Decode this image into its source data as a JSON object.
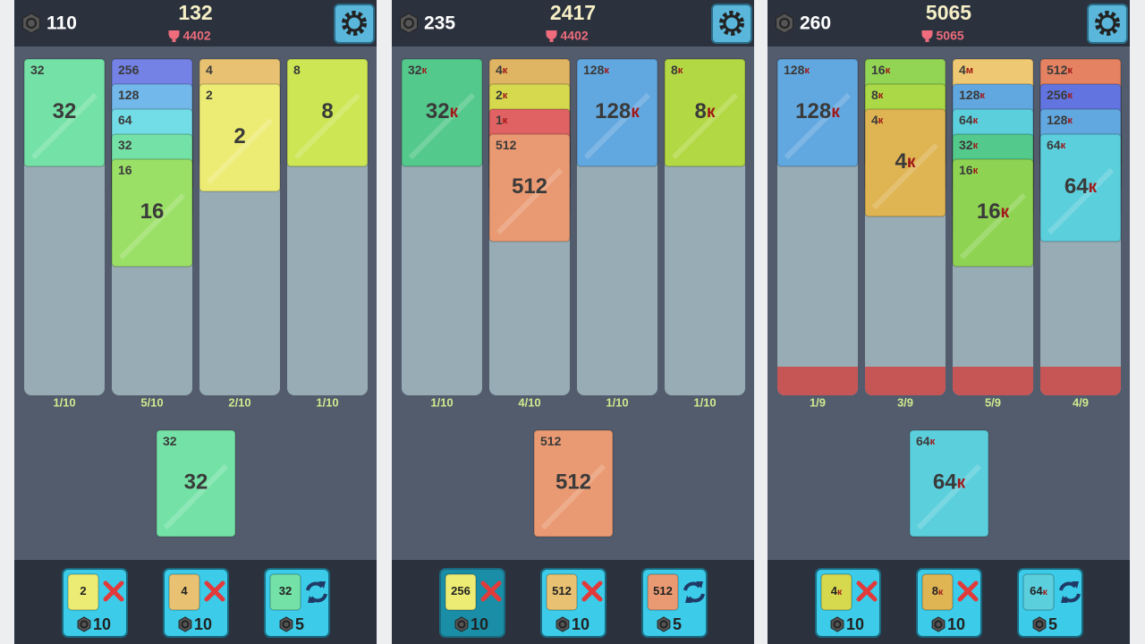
{
  "panels": [
    {
      "coins": "110",
      "score": "132",
      "best": "4402",
      "columns": [
        {
          "cards": [
            {
              "t": "32",
              "color": "#74e2a6"
            }
          ],
          "capacity": "1/10"
        },
        {
          "cards": [
            {
              "t": "256",
              "color": "#7482e6"
            },
            {
              "t": "128",
              "color": "#72b8ea"
            },
            {
              "t": "64",
              "color": "#72dde6"
            },
            {
              "t": "32",
              "color": "#74e2a6"
            },
            {
              "t": "16",
              "color": "#9ae066"
            }
          ],
          "capacity": "5/10"
        },
        {
          "cards": [
            {
              "t": "4",
              "color": "#e8c272"
            },
            {
              "t": "2",
              "color": "#ecec74"
            }
          ],
          "capacity": "2/10"
        },
        {
          "cards": [
            {
              "t": "8",
              "color": "#cce654"
            }
          ],
          "capacity": "1/10"
        }
      ],
      "next": {
        "t": "32",
        "color": "#74e2a6"
      },
      "powerups": [
        {
          "card": {
            "t": "2",
            "color": "#ecec74"
          },
          "action": "remove",
          "cost": "10"
        },
        {
          "card": {
            "t": "4",
            "color": "#e8c272"
          },
          "action": "remove",
          "cost": "10"
        },
        {
          "card": {
            "t": "32",
            "color": "#74e2a6"
          },
          "action": "swap",
          "cost": "5"
        }
      ]
    },
    {
      "coins": "235",
      "score": "2417",
      "best": "4402",
      "columns": [
        {
          "cards": [
            {
              "t": "32",
              "u": "к",
              "color": "#54c98c"
            }
          ],
          "capacity": "1/10"
        },
        {
          "cards": [
            {
              "t": "4",
              "u": "к",
              "color": "#dfb462"
            },
            {
              "t": "2",
              "u": "к",
              "color": "#d6d84e"
            },
            {
              "t": "1",
              "u": "к",
              "color": "#e06262"
            },
            {
              "t": "512",
              "color": "#ea9a72"
            }
          ],
          "capacity": "4/10"
        },
        {
          "cards": [
            {
              "t": "128",
              "u": "к",
              "color": "#62a8e0"
            }
          ],
          "capacity": "1/10"
        },
        {
          "cards": [
            {
              "t": "8",
              "u": "к",
              "color": "#b2d844"
            }
          ],
          "capacity": "1/10"
        }
      ],
      "next": {
        "t": "512",
        "color": "#ea9a72"
      },
      "powerups": [
        {
          "card": {
            "t": "256",
            "color": "#ecec74"
          },
          "action": "remove",
          "cost": "10",
          "selected": true
        },
        {
          "card": {
            "t": "512",
            "color": "#e8c272"
          },
          "action": "remove",
          "cost": "10"
        },
        {
          "card": {
            "t": "512",
            "color": "#ea9a72"
          },
          "action": "swap",
          "cost": "5"
        }
      ]
    },
    {
      "coins": "260",
      "score": "5065",
      "best": "5065",
      "locked_slot": true,
      "columns": [
        {
          "cards": [
            {
              "t": "128",
              "u": "к",
              "color": "#62a8e0"
            }
          ],
          "capacity": "1/9"
        },
        {
          "cards": [
            {
              "t": "16",
              "u": "к",
              "color": "#92d454"
            },
            {
              "t": "8",
              "u": "к",
              "color": "#aad846"
            },
            {
              "t": "4",
              "u": "к",
              "color": "#dfb452"
            }
          ],
          "capacity": "3/9"
        },
        {
          "cards": [
            {
              "t": "4",
              "u": "м",
              "color": "#eec872"
            },
            {
              "t": "128",
              "u": "к",
              "color": "#62a8e0"
            },
            {
              "t": "64",
              "u": "к",
              "color": "#5ccfdc"
            },
            {
              "t": "32",
              "u": "к",
              "color": "#54c98c"
            },
            {
              "t": "16",
              "u": "к",
              "color": "#8ed452"
            }
          ],
          "capacity": "5/9"
        },
        {
          "cards": [
            {
              "t": "512",
              "u": "к",
              "color": "#e48262"
            },
            {
              "t": "256",
              "u": "к",
              "color": "#6274e0"
            },
            {
              "t": "128",
              "u": "к",
              "color": "#62a8e0"
            },
            {
              "t": "64",
              "u": "к",
              "color": "#5ccfdc"
            }
          ],
          "capacity": "4/9"
        }
      ],
      "next": {
        "t": "64",
        "u": "к",
        "color": "#5ccfdc"
      },
      "powerups": [
        {
          "card": {
            "t": "4",
            "u": "к",
            "color": "#d6d84e"
          },
          "action": "remove",
          "cost": "10"
        },
        {
          "card": {
            "t": "8",
            "u": "к",
            "color": "#dfb452"
          },
          "action": "remove",
          "cost": "10"
        },
        {
          "card": {
            "t": "64",
            "u": "к",
            "color": "#5ccfdc"
          },
          "action": "swap",
          "cost": "5"
        }
      ]
    }
  ]
}
